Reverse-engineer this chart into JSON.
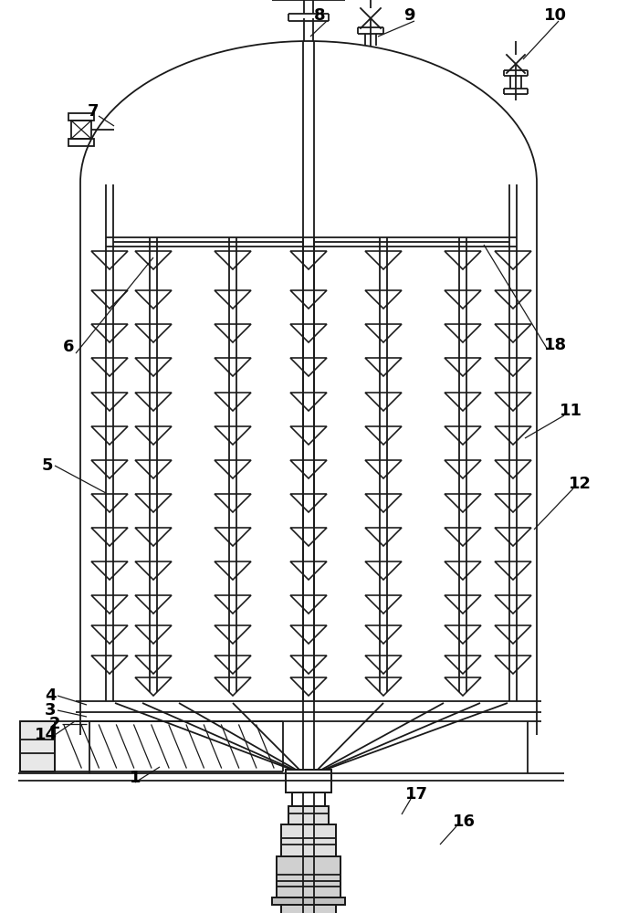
{
  "bg_color": "#ffffff",
  "line_color": "#1a1a1a",
  "lw": 1.3
}
